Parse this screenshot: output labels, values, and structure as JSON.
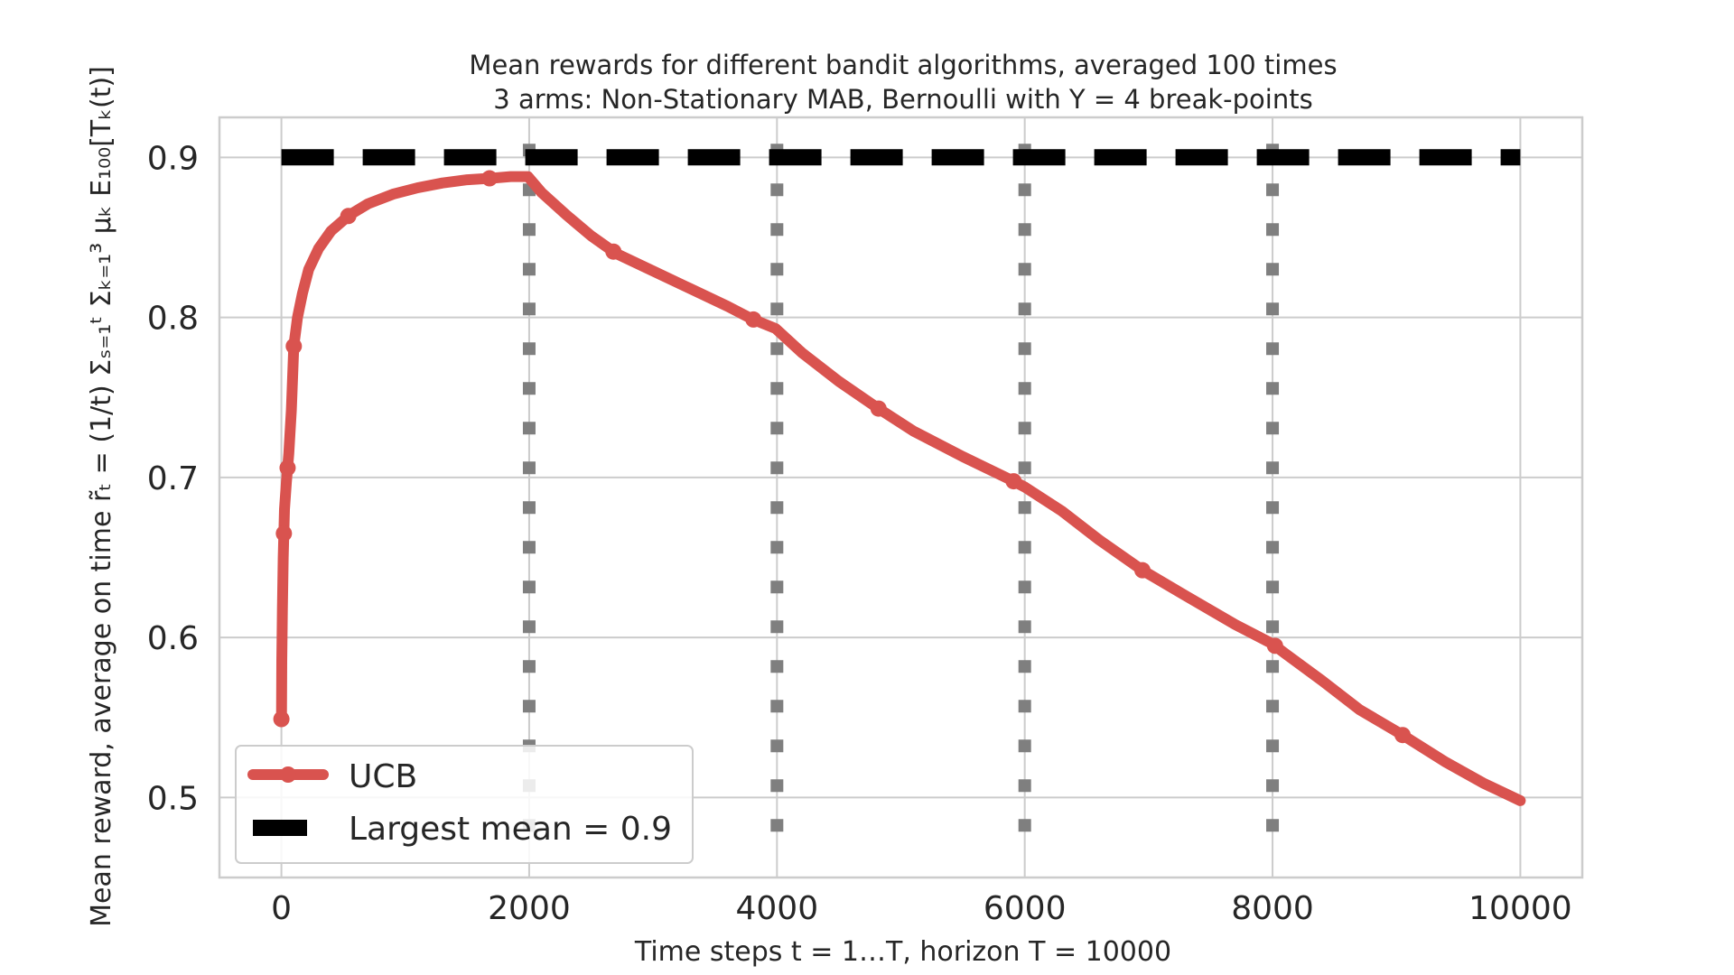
{
  "chart_data": {
    "type": "line",
    "title": [
      "Mean rewards for different bandit algorithms, averaged 100 times",
      "3 arms: Non-Stationary MAB, Bernoulli with Υ = 4 break-points"
    ],
    "xlabel": "Time steps t = 1…T, horizon T = 10000",
    "ylabel": "Mean reward, average on time r̃ₜ = (1/t) Σₛ₌₁ᵗ Σₖ₌₁³ μₖ E₁₀₀[Tₖ(t)]",
    "xlim": [
      -500,
      10500
    ],
    "ylim": [
      0.45,
      0.925
    ],
    "xticks": [
      0,
      2000,
      4000,
      6000,
      8000,
      10000
    ],
    "xtick_labels": [
      "0",
      "2000",
      "4000",
      "6000",
      "8000",
      "10000"
    ],
    "yticks": [
      0.5,
      0.6,
      0.7,
      0.8,
      0.9
    ],
    "ytick_labels": [
      "0.5",
      "0.6",
      "0.7",
      "0.8",
      "0.9"
    ],
    "grid": true,
    "legend_position": "lower-left",
    "break_points": [
      2000,
      4000,
      6000,
      8000
    ],
    "series": [
      {
        "name": "UCB",
        "color": "#d9534f",
        "style": "solid-with-markers",
        "x": [
          1,
          3,
          8,
          15,
          25,
          40,
          60,
          80,
          100,
          130,
          170,
          220,
          300,
          400,
          550,
          700,
          900,
          1100,
          1300,
          1500,
          1700,
          1850,
          1990,
          2100,
          2300,
          2500,
          2700,
          3000,
          3300,
          3600,
          3800,
          3990,
          4200,
          4500,
          4800,
          5100,
          5500,
          5900,
          6000,
          6300,
          6600,
          6950,
          7300,
          7700,
          8000,
          8100,
          8400,
          8700,
          9050,
          9400,
          9700,
          10000
        ],
        "y": [
          0.549,
          0.585,
          0.618,
          0.65,
          0.68,
          0.697,
          0.715,
          0.742,
          0.782,
          0.8,
          0.815,
          0.83,
          0.843,
          0.854,
          0.864,
          0.871,
          0.877,
          0.881,
          0.884,
          0.886,
          0.887,
          0.888,
          0.888,
          0.878,
          0.864,
          0.851,
          0.84,
          0.829,
          0.818,
          0.807,
          0.799,
          0.793,
          0.778,
          0.76,
          0.744,
          0.729,
          0.713,
          0.698,
          0.694,
          0.679,
          0.661,
          0.642,
          0.626,
          0.608,
          0.596,
          0.59,
          0.573,
          0.555,
          0.539,
          0.522,
          0.509,
          0.498
        ],
        "marker_x": [
          0,
          20,
          50,
          100,
          540,
          1680,
          2680,
          3810,
          4820,
          5910,
          6950,
          8020,
          9050
        ]
      },
      {
        "name": "Largest mean = 0.9",
        "color": "#000000",
        "style": "dashed",
        "x": [
          0,
          10000
        ],
        "y": [
          0.9,
          0.9
        ]
      }
    ],
    "legend": {
      "entries": [
        "UCB",
        "Largest mean = 0.9"
      ]
    }
  }
}
